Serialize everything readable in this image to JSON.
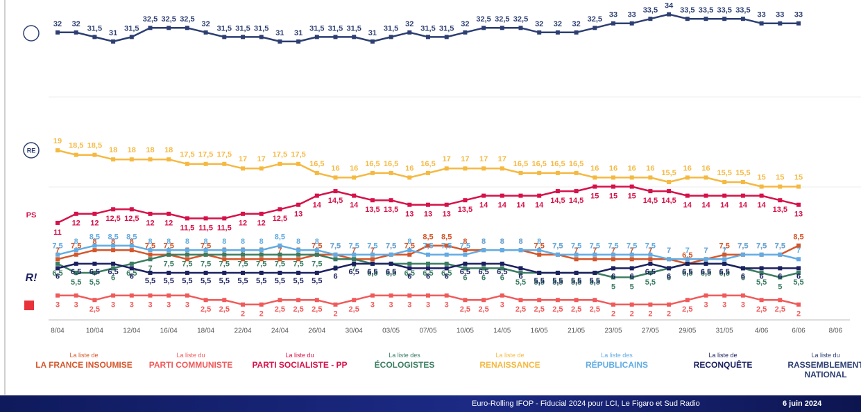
{
  "chart_data": {
    "type": "line",
    "categories": [
      "8/04",
      null,
      "10/04",
      null,
      "12/04",
      null,
      "16/04",
      null,
      "18/04",
      null,
      "22/04",
      null,
      "24/04",
      null,
      "26/04",
      null,
      "30/04",
      null,
      "03/05",
      null,
      "07/05",
      null,
      "10/05",
      null,
      "14/05",
      null,
      "16/05",
      null,
      "21/05",
      null,
      "23/05",
      null,
      "27/05",
      null,
      "29/05",
      null,
      "31/05",
      null,
      "4/06",
      null,
      "6/06",
      null,
      "8/06"
    ],
    "ylim": [
      0,
      35.5
    ],
    "series": [
      {
        "legend_prefix": "La liste de",
        "name": "LA FRANCE INSOUMISE",
        "color": "#d4572c",
        "values": [
          7,
          7.5,
          8,
          8,
          8,
          7.5,
          7.5,
          7,
          7.5,
          7,
          7,
          7,
          7,
          7,
          7.5,
          7.5,
          7,
          7,
          7.5,
          7.5,
          8.5,
          8.5,
          8,
          8,
          8,
          8,
          7.5,
          7.5,
          7,
          7,
          7,
          7,
          7,
          7,
          6.5,
          7,
          7.5,
          7.5,
          7.5,
          7.5,
          8.5,
          null,
          null
        ],
        "value_labels": [
          "7",
          "7,5",
          "8",
          "8",
          "8",
          "7,5",
          "7,5",
          "7",
          "7,5",
          "7",
          "7",
          "7",
          "7",
          "7",
          "7,5",
          "7,5",
          "7",
          "7",
          "7,5",
          "7,5",
          "8,5",
          "8,5",
          "8",
          "8",
          "8",
          "8",
          "7,5",
          "7,5",
          "7",
          "7",
          "7",
          "7",
          "7",
          "7",
          "6,5",
          "7",
          "7,5",
          "7,5",
          "7,5",
          "7,5",
          "8,5",
          null,
          null
        ]
      },
      {
        "legend_prefix": "La liste du",
        "name": "PARTI COMMUNISTE",
        "color": "#f05a5a",
        "values": [
          3,
          3,
          2.5,
          3,
          3,
          3,
          3,
          3,
          2.5,
          2.5,
          2,
          2,
          2.5,
          2.5,
          2.5,
          2,
          2.5,
          3,
          3,
          3,
          3,
          3,
          2.5,
          2.5,
          3,
          2.5,
          2.5,
          2.5,
          2.5,
          2.5,
          2,
          2,
          2,
          2,
          2.5,
          3,
          3,
          3,
          2.5,
          2.5,
          2,
          null,
          null
        ],
        "value_labels": [
          "3",
          "3",
          "2,5",
          "3",
          "3",
          "3",
          "3",
          "3",
          "2,5",
          "2,5",
          "2",
          "2",
          "2,5",
          "2,5",
          "2,5",
          "2",
          "2,5",
          "3",
          "3",
          "3",
          "3",
          "3",
          "2,5",
          "2,5",
          "3",
          "2,5",
          "2,5",
          "2,5",
          "2,5",
          "2,5",
          "2",
          "2",
          "2",
          "2",
          "2,5",
          "3",
          "3",
          "3",
          "2,5",
          "2,5",
          "2",
          null,
          null
        ]
      },
      {
        "legend_prefix": "La liste du",
        "name": "PARTI SOCIALISTE - PP",
        "color": "#d6124a",
        "values": [
          11,
          12,
          12,
          12.5,
          12.5,
          12,
          12,
          11.5,
          11.5,
          11.5,
          12,
          12,
          12.5,
          13,
          14,
          14.5,
          14,
          13.5,
          13.5,
          13,
          13,
          13,
          13.5,
          14,
          14,
          14,
          14,
          14.5,
          14.5,
          15,
          15,
          15,
          14.5,
          14.5,
          14,
          14,
          14,
          14,
          14,
          13.5,
          13,
          null,
          null
        ],
        "value_labels": [
          "11",
          "12",
          "12",
          "12,5",
          "12,5",
          "12",
          "12",
          "11,5",
          "11,5",
          "11,5",
          "12",
          "12",
          "12,5",
          "13",
          "14",
          "14,5",
          "14",
          "13,5",
          "13,5",
          "13",
          "13",
          "13",
          "13,5",
          "14",
          "14",
          "14",
          "14",
          "14,5",
          "14,5",
          "15",
          "15",
          "15",
          "14,5",
          "14,5",
          "14",
          "14",
          "14",
          "14",
          "14",
          "13,5",
          "13",
          null,
          null
        ]
      },
      {
        "legend_prefix": "La liste des",
        "name": "ÉCOLOGISTES",
        "color": "#3b7d62",
        "values": [
          6.5,
          5.5,
          5.5,
          6,
          6.5,
          7,
          7.5,
          7.5,
          7.5,
          7.5,
          7.5,
          7.5,
          7.5,
          7.5,
          7.5,
          7,
          7,
          6.5,
          6.5,
          6.5,
          6.5,
          6.5,
          6,
          6,
          6,
          5.5,
          5.5,
          5.5,
          5.5,
          5.5,
          5,
          5,
          5.5,
          6,
          6.5,
          6.5,
          6.5,
          6,
          5.5,
          5,
          5.5,
          null,
          null
        ],
        "value_labels": [
          "6,5",
          "5,5",
          "5,5",
          "6",
          "6,5",
          "7",
          "7,5",
          "7,5",
          "7,5",
          "7,5",
          "7,5",
          "7,5",
          "7,5",
          "7,5",
          "7,5",
          "7",
          "7",
          "6,5",
          "6,5",
          "6,5",
          "6,5",
          "6,5",
          "6",
          "6",
          "6",
          "5,5",
          "5,5",
          "5,5",
          "5,5",
          "5,5",
          "5",
          "5",
          "5,5",
          "6",
          "6,5",
          "6,5",
          "6,5",
          "6",
          "5,5",
          "5",
          "5,5",
          null,
          null
        ]
      },
      {
        "legend_prefix": "La liste de",
        "name": "RENAISSANCE",
        "color": "#f5b942",
        "values": [
          19,
          18.5,
          18.5,
          18,
          18,
          18,
          18,
          17.5,
          17.5,
          17.5,
          17,
          17,
          17.5,
          17.5,
          16.5,
          16,
          16,
          16.5,
          16.5,
          16,
          16.5,
          17,
          17,
          17,
          17,
          16.5,
          16.5,
          16.5,
          16.5,
          16,
          16,
          16,
          16,
          15.5,
          16,
          16,
          15.5,
          15.5,
          15,
          15,
          15,
          null,
          null
        ],
        "value_labels": [
          "19",
          "18,5",
          "18,5",
          "18",
          "18",
          "18",
          "18",
          "17,5",
          "17,5",
          "17,5",
          "17",
          "17",
          "17,5",
          "17,5",
          "16,5",
          "16",
          "16",
          "16,5",
          "16,5",
          "16",
          "16,5",
          "17",
          "17",
          "17",
          "17",
          "16,5",
          "16,5",
          "16,5",
          "16,5",
          "16",
          "16",
          "16",
          "16",
          "15,5",
          "16",
          "16",
          "15,5",
          "15,5",
          "15",
          "15",
          "15",
          null,
          null
        ]
      },
      {
        "legend_prefix": "La liste des",
        "name": "RÉPUBLICAINS",
        "color": "#62ace3",
        "values": [
          7.5,
          8,
          8.5,
          8.5,
          8.5,
          8,
          8,
          8,
          8,
          8,
          8,
          8,
          8.5,
          8,
          8,
          7.5,
          7.5,
          7.5,
          7.5,
          8,
          7.5,
          7.5,
          7.5,
          8,
          8,
          8,
          8,
          7.5,
          7.5,
          7.5,
          7.5,
          7.5,
          7.5,
          7,
          7,
          7,
          7,
          7.5,
          7.5,
          7.5,
          7,
          null,
          null
        ],
        "value_labels": [
          "7,5",
          "8",
          "8,5",
          "8,5",
          "8,5",
          "8",
          "8",
          "8",
          "8",
          "8",
          "8",
          "8",
          "8,5",
          "8",
          "8",
          "7,5",
          "7,5",
          "7,5",
          "7,5",
          "8",
          "7,5",
          "7,5",
          "7,5",
          "8",
          "8",
          "8",
          "8",
          "7,5",
          "7,5",
          "7,5",
          "7,5",
          "7,5",
          "7,5",
          "7",
          "7",
          "7",
          "7",
          "7,5",
          "7,5",
          "7,5",
          "7",
          null,
          null
        ]
      },
      {
        "legend_prefix": "La liste de",
        "name": "RECONQUÊTE",
        "color": "#1c2160",
        "values": [
          6,
          6.5,
          6.5,
          6.5,
          6,
          5.5,
          5.5,
          5.5,
          5.5,
          5.5,
          5.5,
          5.5,
          5.5,
          5.5,
          5.5,
          6,
          6.5,
          6.5,
          6.5,
          6,
          6,
          6,
          6.5,
          6.5,
          6.5,
          6,
          5.5,
          5.5,
          5.5,
          5.5,
          6,
          6,
          6.5,
          6,
          6.5,
          6.5,
          6.5,
          6,
          6,
          6,
          6,
          null,
          null
        ],
        "value_labels": [
          "6",
          "6,5",
          "6,5",
          "6,5",
          "6",
          "5,5",
          "5,5",
          "5,5",
          "5,5",
          "5,5",
          "5,5",
          "5,5",
          "5,5",
          "5,5",
          "5,5",
          "6",
          "6,5",
          "6,5",
          "6,5",
          "6",
          "6",
          "6",
          "6,5",
          "6,5",
          "6,5",
          "6",
          "5,5",
          "5,5",
          "5,5",
          "5,5",
          "6",
          "6",
          "6,5",
          "6",
          "6,5",
          "6,5",
          "6,5",
          "6",
          "6",
          "6",
          "6",
          null,
          null
        ]
      },
      {
        "legend_prefix": "La liste du",
        "name": "RASSEMBLEMENT NATIONAL",
        "color": "#2c3e72",
        "values": [
          32,
          32,
          31.5,
          31,
          31.5,
          32.5,
          32.5,
          32.5,
          32,
          31.5,
          31.5,
          31.5,
          31,
          31,
          31.5,
          31.5,
          31.5,
          31,
          31.5,
          32,
          31.5,
          31.5,
          32,
          32.5,
          32.5,
          32.5,
          32,
          32,
          32,
          32.5,
          33,
          33,
          33.5,
          34,
          33.5,
          33.5,
          33.5,
          33.5,
          33,
          33,
          33,
          null,
          null
        ],
        "value_labels": [
          "32",
          "32",
          "31,5",
          "31",
          "31,5",
          "32,5",
          "32,5",
          "32,5",
          "32",
          "31,5",
          "31,5",
          "31,5",
          "31",
          "31",
          "31,5",
          "31,5",
          "31,5",
          "31",
          "31,5",
          "32",
          "31,5",
          "31,5",
          "32",
          "32,5",
          "32,5",
          "32,5",
          "32",
          "32",
          "32",
          "32,5",
          "33",
          "33",
          "33,5",
          "34",
          "33,5",
          "33,5",
          "33,5",
          "33,5",
          "33",
          "33",
          "33",
          null,
          null
        ]
      }
    ]
  },
  "logos": [
    "RE",
    "PS",
    "R!"
  ],
  "footer": {
    "source": "Euro-Rolling IFOP - Fiducial 2024 pour LCI, Le Figaro et Sud Radio",
    "date": "6 juin 2024"
  }
}
